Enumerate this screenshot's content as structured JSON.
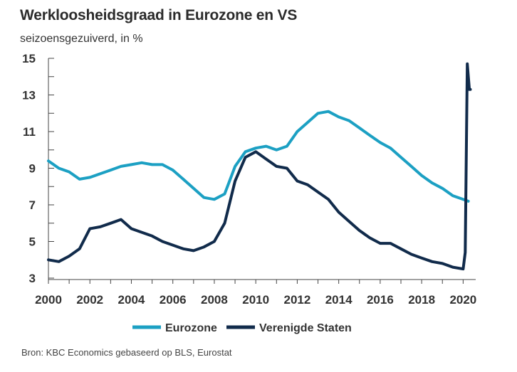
{
  "title": "Werkloosheidsgraad in Eurozone en VS",
  "subtitle": "seizoensgezuiverd, in %",
  "source": "Bron: KBC Economics gebaseerd op BLS, Eurostat",
  "colors": {
    "eurozone": "#1ca0c3",
    "us": "#112b4b",
    "axis": "#444444"
  },
  "chart_data": {
    "type": "line",
    "title": "Werkloosheidsgraad in Eurozone en VS",
    "subtitle": "seizoensgezuiverd, in %",
    "xlabel": "",
    "ylabel": "",
    "xlim": [
      2000,
      2020.4
    ],
    "ylim": [
      3,
      15
    ],
    "yticks": [
      3,
      5,
      7,
      9,
      11,
      13,
      15
    ],
    "xticks": [
      2000,
      2002,
      2004,
      2006,
      2008,
      2010,
      2012,
      2014,
      2016,
      2018,
      2020
    ],
    "grid": false,
    "legend": "bottom",
    "series": [
      {
        "name": "Eurozone",
        "x": [
          2000.0,
          2000.5,
          2001.0,
          2001.5,
          2002.0,
          2002.5,
          2003.0,
          2003.5,
          2004.0,
          2004.5,
          2005.0,
          2005.5,
          2006.0,
          2006.5,
          2007.0,
          2007.5,
          2008.0,
          2008.5,
          2009.0,
          2009.5,
          2010.0,
          2010.5,
          2011.0,
          2011.5,
          2012.0,
          2012.5,
          2013.0,
          2013.5,
          2014.0,
          2014.5,
          2015.0,
          2015.5,
          2016.0,
          2016.5,
          2017.0,
          2017.5,
          2018.0,
          2018.5,
          2019.0,
          2019.5,
          2020.0,
          2020.25
        ],
        "values": [
          9.4,
          9.0,
          8.8,
          8.4,
          8.5,
          8.7,
          8.9,
          9.1,
          9.2,
          9.3,
          9.2,
          9.2,
          8.9,
          8.4,
          7.9,
          7.4,
          7.3,
          7.6,
          9.1,
          9.9,
          10.1,
          10.2,
          10.0,
          10.2,
          11.0,
          11.5,
          12.0,
          12.1,
          11.8,
          11.6,
          11.2,
          10.8,
          10.4,
          10.1,
          9.6,
          9.1,
          8.6,
          8.2,
          7.9,
          7.5,
          7.3,
          7.2
        ]
      },
      {
        "name": "Verenigde Staten",
        "x": [
          2000.0,
          2000.5,
          2001.0,
          2001.5,
          2002.0,
          2002.5,
          2003.0,
          2003.5,
          2004.0,
          2004.5,
          2005.0,
          2005.5,
          2006.0,
          2006.5,
          2007.0,
          2007.5,
          2008.0,
          2008.5,
          2009.0,
          2009.5,
          2010.0,
          2010.5,
          2011.0,
          2011.5,
          2012.0,
          2012.5,
          2013.0,
          2013.5,
          2014.0,
          2014.5,
          2015.0,
          2015.5,
          2016.0,
          2016.5,
          2017.0,
          2017.5,
          2018.0,
          2018.5,
          2019.0,
          2019.5,
          2020.0,
          2020.1,
          2020.2,
          2020.3,
          2020.35
        ],
        "values": [
          4.0,
          3.9,
          4.2,
          4.6,
          5.7,
          5.8,
          6.0,
          6.2,
          5.7,
          5.5,
          5.3,
          5.0,
          4.8,
          4.6,
          4.5,
          4.7,
          5.0,
          6.0,
          8.3,
          9.6,
          9.9,
          9.5,
          9.1,
          9.0,
          8.3,
          8.1,
          7.7,
          7.3,
          6.6,
          6.1,
          5.6,
          5.2,
          4.9,
          4.9,
          4.6,
          4.3,
          4.1,
          3.9,
          3.8,
          3.6,
          3.5,
          4.4,
          14.7,
          13.3,
          13.3
        ]
      }
    ]
  }
}
